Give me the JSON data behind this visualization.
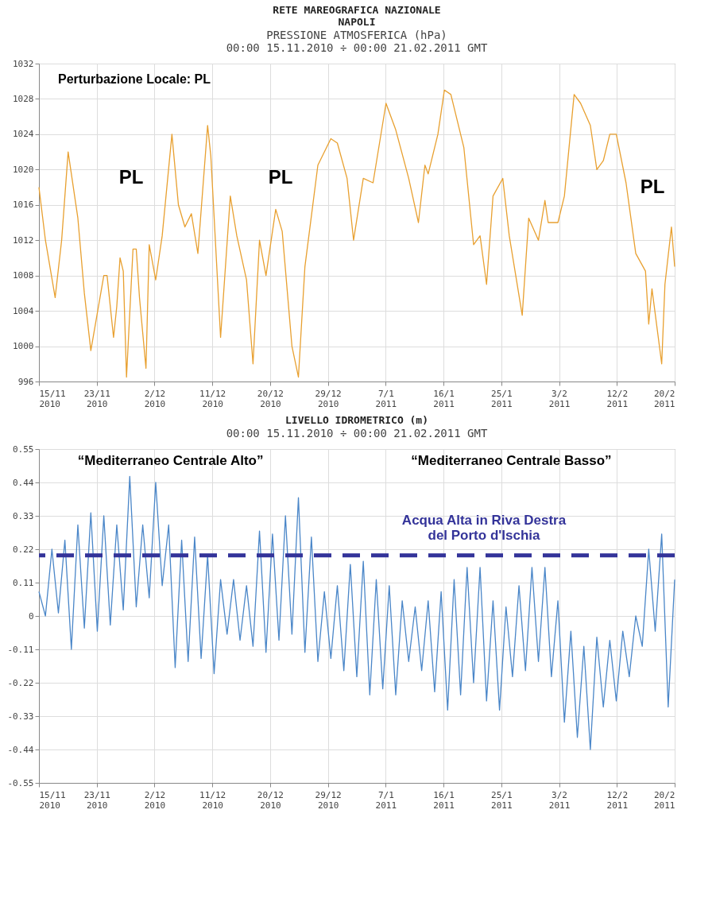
{
  "chart_data": [
    {
      "type": "line",
      "title": "RETE MAREOGRAFICA NAZIONALE\nNAPOLI",
      "subtitle": "PRESSIONE ATMOSFERICA (hPa)\n00:00 15.11.2010 ÷ 00:00 21.02.2011 GMT",
      "x": [
        "2010-11-15T00:00",
        "2010-11-16T00:00",
        "2010-11-17T12:00",
        "2010-11-18T12:00",
        "2010-11-19T12:00",
        "2010-11-21T00:00",
        "2010-11-22T00:00",
        "2010-11-23T00:00",
        "2010-11-25T00:00",
        "2010-11-25T12:00",
        "2010-11-26T12:00",
        "2010-11-27T00:00",
        "2010-11-27T12:00",
        "2010-11-28T00:00",
        "2010-11-28T12:00",
        "2010-11-29T12:00",
        "2010-11-30T00:00",
        "2010-11-30T12:00",
        "2010-12-01T12:00",
        "2010-12-02T00:00",
        "2010-12-03T00:00",
        "2010-12-04T00:00",
        "2010-12-05T12:00",
        "2010-12-06T12:00",
        "2010-12-07T12:00",
        "2010-12-08T12:00",
        "2010-12-09T12:00",
        "2010-12-11T00:00",
        "2010-12-11T12:00",
        "2010-12-13T00:00",
        "2010-12-14T12:00",
        "2010-12-15T12:00",
        "2010-12-17T00:00",
        "2010-12-18T00:00",
        "2010-12-19T00:00",
        "2010-12-20T00:00",
        "2010-12-21T12:00",
        "2010-12-22T12:00",
        "2010-12-24T00:00",
        "2010-12-25T00:00",
        "2010-12-26T00:00",
        "2010-12-28T00:00",
        "2010-12-30T00:00",
        "2010-12-31T00:00",
        "2011-01-01T12:00",
        "2011-01-02T12:00",
        "2011-01-04T00:00",
        "2011-01-05T12:00",
        "2011-01-07T12:00",
        "2011-01-09T00:00",
        "2011-01-11T00:00",
        "2011-01-12T12:00",
        "2011-01-13T12:00",
        "2011-01-14T00:00",
        "2011-01-15T12:00",
        "2011-01-16T12:00",
        "2011-01-17T12:00",
        "2011-01-19T12:00",
        "2011-01-21T00:00",
        "2011-01-22T00:00",
        "2011-01-23T00:00",
        "2011-01-24T00:00",
        "2011-01-25T12:00",
        "2011-01-26T12:00",
        "2011-01-28T12:00",
        "2011-01-29T12:00",
        "2011-01-31T00:00",
        "2011-02-01T00:00",
        "2011-02-01T12:00",
        "2011-02-03T00:00",
        "2011-02-04T00:00",
        "2011-02-05T12:00",
        "2011-02-06T12:00",
        "2011-02-08T00:00",
        "2011-02-09T00:00",
        "2011-02-10T00:00",
        "2011-02-11T00:00",
        "2011-02-12T00:00",
        "2011-02-13T12:00",
        "2011-02-15T00:00",
        "2011-02-16T12:00",
        "2011-02-17T00:00",
        "2011-02-17T12:00",
        "2011-02-19T00:00",
        "2011-02-19T12:00",
        "2011-02-20T12:00",
        "2011-02-21T00:00"
      ],
      "series": [
        {
          "color": "#e8a030",
          "values": [
            1018,
            1012,
            1005.5,
            1012,
            1022,
            1014.5,
            1006,
            999.5,
            1008,
            1008,
            1001,
            1004.5,
            1010,
            1008.5,
            996.5,
            1011,
            1011,
            1005.5,
            997.5,
            1011.5,
            1007.5,
            1012.5,
            1024,
            1016,
            1013.5,
            1015,
            1010.5,
            1025,
            1021.5,
            1001,
            1017,
            1012.5,
            1007.5,
            998,
            1012,
            1008,
            1015.5,
            1013,
            1000,
            996.5,
            1009,
            1020.5,
            1023.5,
            1023,
            1019,
            1012,
            1019,
            1018.5,
            1027.5,
            1024.5,
            1019,
            1014,
            1020.5,
            1019.5,
            1024,
            1029,
            1028.5,
            1022.5,
            1011.5,
            1012.5,
            1007,
            1017,
            1019,
            1012.5,
            1003.5,
            1014.5,
            1012,
            1016.5,
            1014,
            1014,
            1017,
            1028.5,
            1027.5,
            1025,
            1020,
            1021,
            1024,
            1024,
            1018.5,
            1010.5,
            1008.5,
            1002.5,
            1006.5,
            998,
            1007,
            1013.5,
            1009
          ]
        }
      ],
      "xlim": [
        "2010-11-15T00:00",
        "2011-02-21T00:00"
      ],
      "xticks": [
        {
          "value": "2010-11-15T00:00",
          "label": "15/11\n2010"
        },
        {
          "value": "2010-11-23T21:49",
          "label": "23/11\n2010"
        },
        {
          "value": "2010-12-02T19:38",
          "label": "2/12\n2010"
        },
        {
          "value": "2010-12-11T17:27",
          "label": "11/12\n2010"
        },
        {
          "value": "2010-12-20T15:16",
          "label": "20/12\n2010"
        },
        {
          "value": "2010-12-29T13:05",
          "label": "29/12\n2010"
        },
        {
          "value": "2011-01-07T10:55",
          "label": "7/1\n2011"
        },
        {
          "value": "2011-01-16T08:44",
          "label": "16/1\n2011"
        },
        {
          "value": "2011-01-25T06:33",
          "label": "25/1\n2011"
        },
        {
          "value": "2011-02-03T04:22",
          "label": "3/2\n2011"
        },
        {
          "value": "2011-02-12T02:11",
          "label": "12/2\n2011"
        },
        {
          "value": "2011-02-21T00:00",
          "label": "20/2\n2011"
        }
      ],
      "ylim": [
        996,
        1032
      ],
      "yticks": [
        996,
        1000,
        1004,
        1008,
        1012,
        1016,
        1020,
        1024,
        1028,
        1032
      ],
      "grid": true,
      "annotations": [
        "Perturbazione Locale: PL",
        "PL",
        "PL",
        "PL"
      ]
    },
    {
      "type": "line",
      "title": "LIVELLO IDROMETRICO (m)",
      "subtitle": "00:00 15.11.2010 ÷ 00:00 21.02.2011 GMT",
      "x": [
        "2010-11-15",
        "2010-11-16",
        "2010-11-17",
        "2010-11-18",
        "2010-11-19",
        "2010-11-20",
        "2010-11-21",
        "2010-11-22",
        "2010-11-23",
        "2010-11-24",
        "2010-11-25",
        "2010-11-26",
        "2010-11-27",
        "2010-11-28",
        "2010-11-29",
        "2010-11-30",
        "2010-12-01",
        "2010-12-02",
        "2010-12-03",
        "2010-12-04",
        "2010-12-05",
        "2010-12-06",
        "2010-12-07",
        "2010-12-08",
        "2010-12-09",
        "2010-12-10",
        "2010-12-11",
        "2010-12-12",
        "2010-12-13",
        "2010-12-14",
        "2010-12-15",
        "2010-12-16",
        "2010-12-17",
        "2010-12-18",
        "2010-12-19",
        "2010-12-20",
        "2010-12-21",
        "2010-12-22",
        "2010-12-23",
        "2010-12-24",
        "2010-12-25",
        "2010-12-26",
        "2010-12-27",
        "2010-12-28",
        "2010-12-29",
        "2010-12-30",
        "2010-12-31",
        "2011-01-01",
        "2011-01-02",
        "2011-01-03",
        "2011-01-04",
        "2011-01-05",
        "2011-01-06",
        "2011-01-07",
        "2011-01-08",
        "2011-01-09",
        "2011-01-10",
        "2011-01-11",
        "2011-01-12",
        "2011-01-13",
        "2011-01-14",
        "2011-01-15",
        "2011-01-16",
        "2011-01-17",
        "2011-01-18",
        "2011-01-19",
        "2011-01-20",
        "2011-01-21",
        "2011-01-22",
        "2011-01-23",
        "2011-01-24",
        "2011-01-25",
        "2011-01-26",
        "2011-01-27",
        "2011-01-28",
        "2011-01-29",
        "2011-01-30",
        "2011-01-31",
        "2011-02-01",
        "2011-02-02",
        "2011-02-03",
        "2011-02-04",
        "2011-02-05",
        "2011-02-06",
        "2011-02-07",
        "2011-02-08",
        "2011-02-09",
        "2011-02-10",
        "2011-02-11",
        "2011-02-12",
        "2011-02-13",
        "2011-02-14",
        "2011-02-15",
        "2011-02-16",
        "2011-02-17",
        "2011-02-18",
        "2011-02-19",
        "2011-02-20",
        "2011-02-21"
      ],
      "series": [
        {
          "color": "#4a86c8",
          "values": [
            0.08,
            0.0,
            0.22,
            0.01,
            0.25,
            -0.11,
            0.3,
            -0.04,
            0.34,
            -0.05,
            0.33,
            -0.03,
            0.3,
            0.02,
            0.46,
            0.03,
            0.3,
            0.06,
            0.44,
            0.1,
            0.3,
            -0.17,
            0.25,
            -0.15,
            0.26,
            -0.14,
            0.2,
            -0.19,
            0.12,
            -0.06,
            0.12,
            -0.08,
            0.1,
            -0.1,
            0.28,
            -0.12,
            0.27,
            -0.08,
            0.33,
            -0.06,
            0.39,
            -0.12,
            0.26,
            -0.15,
            0.08,
            -0.14,
            0.1,
            -0.18,
            0.17,
            -0.2,
            0.18,
            -0.26,
            0.12,
            -0.24,
            0.1,
            -0.26,
            0.05,
            -0.15,
            0.03,
            -0.18,
            0.05,
            -0.25,
            0.08,
            -0.31,
            0.12,
            -0.26,
            0.16,
            -0.22,
            0.16,
            -0.28,
            0.05,
            -0.31,
            0.03,
            -0.2,
            0.1,
            -0.18,
            0.16,
            -0.15,
            0.16,
            -0.2,
            0.05,
            -0.35,
            -0.05,
            -0.4,
            -0.1,
            -0.44,
            -0.07,
            -0.3,
            -0.08,
            -0.28,
            -0.05,
            -0.2,
            0.0,
            -0.1,
            0.22,
            -0.05,
            0.27,
            -0.3,
            0.12
          ]
        }
      ],
      "xlim": [
        "2010-11-15T00:00",
        "2011-02-21T00:00"
      ],
      "xticks": [
        {
          "value": "2010-11-15T00:00",
          "label": "15/11\n2010"
        },
        {
          "value": "2010-11-23T21:49",
          "label": "23/11\n2010"
        },
        {
          "value": "2010-12-02T19:38",
          "label": "2/12\n2010"
        },
        {
          "value": "2010-12-11T17:27",
          "label": "11/12\n2010"
        },
        {
          "value": "2010-12-20T15:16",
          "label": "20/12\n2010"
        },
        {
          "value": "2010-12-29T13:05",
          "label": "29/12\n2010"
        },
        {
          "value": "2011-01-07T10:55",
          "label": "7/1\n2011"
        },
        {
          "value": "2011-01-16T08:44",
          "label": "16/1\n2011"
        },
        {
          "value": "2011-01-25T06:33",
          "label": "25/1\n2011"
        },
        {
          "value": "2011-02-03T04:22",
          "label": "3/2\n2011"
        },
        {
          "value": "2011-02-12T02:11",
          "label": "12/2\n2011"
        },
        {
          "value": "2011-02-21T00:00",
          "label": "20/2\n2011"
        }
      ],
      "ylim": [
        -0.55,
        0.55
      ],
      "yticks": [
        -0.55,
        -0.44,
        -0.33,
        -0.22,
        -0.11,
        0,
        0.11,
        0.22,
        0.33,
        0.44,
        0.55
      ],
      "grid": true,
      "ref_lines": [
        {
          "axis": "y",
          "value": 0.2,
          "label": "Acqua Alta in Riva Destra\ndel Porto d'Ischia",
          "color": "#333399",
          "line_style": "dashed"
        }
      ],
      "annotations": [
        "“Mediterraneo Centrale Alto”",
        "“Mediterraneo Centrale Basso”"
      ]
    }
  ]
}
